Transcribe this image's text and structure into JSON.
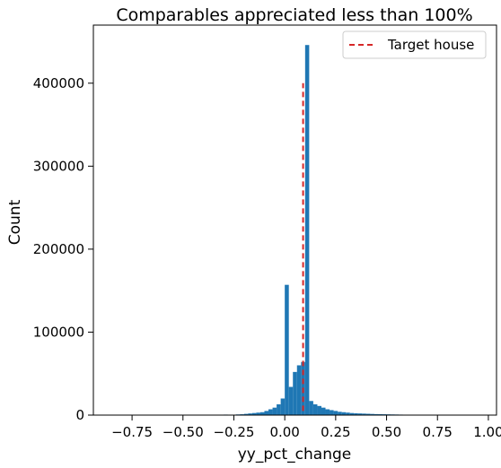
{
  "chart_data": {
    "type": "bar",
    "title": "Comparables appreciated less than 100%",
    "xlabel": "yy_pct_change",
    "ylabel": "Count",
    "xlim": [
      -0.94,
      1.04
    ],
    "ylim": [
      0,
      470000
    ],
    "bin_width": 0.02,
    "x_ticks": [
      -0.75,
      -0.5,
      -0.25,
      0.0,
      0.25,
      0.5,
      0.75,
      1.0
    ],
    "x_tick_labels": [
      "−0.75",
      "−0.50",
      "−0.25",
      "0.00",
      "0.25",
      "0.50",
      "0.75",
      "1.00"
    ],
    "y_ticks": [
      0,
      100000,
      200000,
      300000,
      400000
    ],
    "y_tick_labels": [
      "0",
      "100000",
      "200000",
      "300000",
      "400000"
    ],
    "bar_color": "#1f77b4",
    "bins": [
      {
        "x": -0.9,
        "count": 200
      },
      {
        "x": -0.8,
        "count": 250
      },
      {
        "x": -0.7,
        "count": 300
      },
      {
        "x": -0.6,
        "count": 350
      },
      {
        "x": -0.5,
        "count": 400
      },
      {
        "x": -0.4,
        "count": 450
      },
      {
        "x": -0.3,
        "count": 600
      },
      {
        "x": -0.24,
        "count": 800
      },
      {
        "x": -0.22,
        "count": 1000
      },
      {
        "x": -0.2,
        "count": 1500
      },
      {
        "x": -0.18,
        "count": 2000
      },
      {
        "x": -0.16,
        "count": 2500
      },
      {
        "x": -0.14,
        "count": 3000
      },
      {
        "x": -0.12,
        "count": 3500
      },
      {
        "x": -0.1,
        "count": 5000
      },
      {
        "x": -0.08,
        "count": 7000
      },
      {
        "x": -0.06,
        "count": 9000
      },
      {
        "x": -0.04,
        "count": 13000
      },
      {
        "x": -0.02,
        "count": 20000
      },
      {
        "x": 0.0,
        "count": 157000
      },
      {
        "x": 0.02,
        "count": 34000
      },
      {
        "x": 0.04,
        "count": 52000
      },
      {
        "x": 0.06,
        "count": 60000
      },
      {
        "x": 0.08,
        "count": 64000
      },
      {
        "x": 0.1,
        "count": 446000
      },
      {
        "x": 0.12,
        "count": 17000
      },
      {
        "x": 0.14,
        "count": 13000
      },
      {
        "x": 0.16,
        "count": 11000
      },
      {
        "x": 0.18,
        "count": 9000
      },
      {
        "x": 0.2,
        "count": 7000
      },
      {
        "x": 0.22,
        "count": 6000
      },
      {
        "x": 0.24,
        "count": 5000
      },
      {
        "x": 0.26,
        "count": 4000
      },
      {
        "x": 0.28,
        "count": 3500
      },
      {
        "x": 0.3,
        "count": 3000
      },
      {
        "x": 0.32,
        "count": 2500
      },
      {
        "x": 0.34,
        "count": 2200
      },
      {
        "x": 0.36,
        "count": 2000
      },
      {
        "x": 0.38,
        "count": 1800
      },
      {
        "x": 0.4,
        "count": 1600
      },
      {
        "x": 0.42,
        "count": 1400
      },
      {
        "x": 0.44,
        "count": 1200
      },
      {
        "x": 0.46,
        "count": 1100
      },
      {
        "x": 0.48,
        "count": 1000
      },
      {
        "x": 0.5,
        "count": 900
      },
      {
        "x": 0.52,
        "count": 800
      },
      {
        "x": 0.54,
        "count": 700
      },
      {
        "x": 0.56,
        "count": 600
      },
      {
        "x": 0.58,
        "count": 500
      },
      {
        "x": 0.6,
        "count": 400
      },
      {
        "x": 0.62,
        "count": 300
      },
      {
        "x": 0.64,
        "count": 250
      },
      {
        "x": 0.7,
        "count": 200
      },
      {
        "x": 0.8,
        "count": 150
      },
      {
        "x": 0.9,
        "count": 120
      },
      {
        "x": 0.98,
        "count": 100
      }
    ],
    "target": {
      "label": "Target house",
      "x": 0.09,
      "y_range": [
        5000,
        400000
      ],
      "color": "#d62728",
      "style": "dashed"
    },
    "legend_position": "top-right",
    "grid": false
  }
}
